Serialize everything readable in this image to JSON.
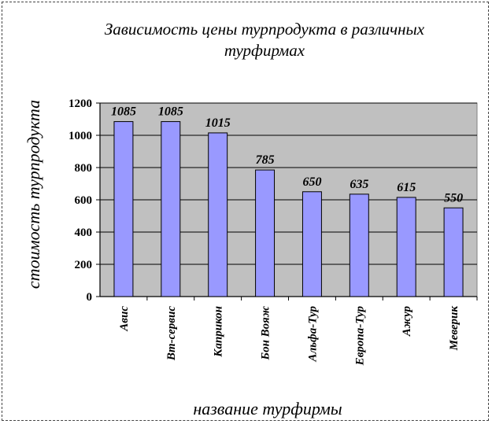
{
  "colors": {
    "plot_area": "#c0c0c0",
    "bar_fill": "#9999ff",
    "bar_stroke": "#000000",
    "grid": "#000000"
  },
  "chart_data": {
    "type": "bar",
    "title_lines": [
      "Зависимость цены турпродукта в различных",
      "турфирмах"
    ],
    "xlabel": "название турфирмы",
    "ylabel": "стоимость турпродукта",
    "categories": [
      "Авис",
      "Вт-сервис",
      "Каприкон",
      "Бон Вояж",
      "Альфа-Тур",
      "Европа-Тур",
      "Ажур",
      "Меверик"
    ],
    "values": [
      1085,
      1085,
      1015,
      785,
      650,
      635,
      615,
      550
    ],
    "ylim": [
      0,
      1200
    ],
    "yticks": [
      0,
      200,
      400,
      600,
      800,
      1000,
      1200
    ],
    "grid": true,
    "legend": "none"
  }
}
